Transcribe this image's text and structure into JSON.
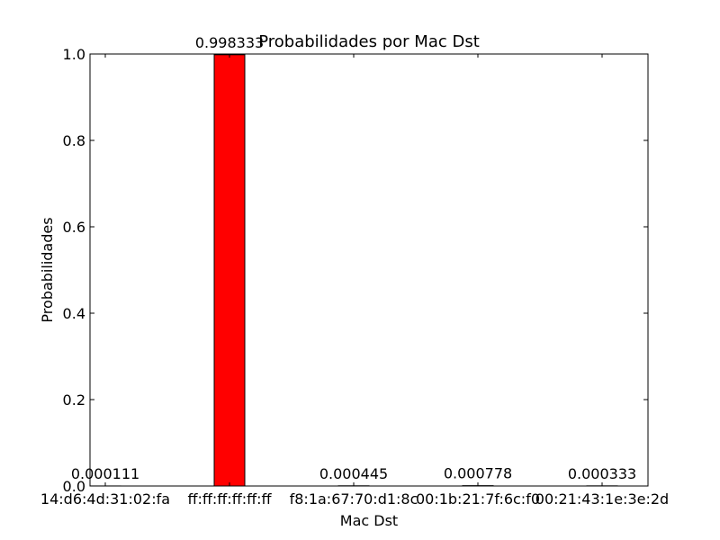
{
  "chart_data": {
    "type": "bar",
    "title": "Probabilidades por Mac Dst",
    "xlabel": "Mac Dst",
    "ylabel": "Probabilidades",
    "ylim": [
      0,
      1.0
    ],
    "yticks": [
      "0.0",
      "0.2",
      "0.4",
      "0.6",
      "0.8",
      "1.0"
    ],
    "categories": [
      "14:d6:4d:31:02:fa",
      "ff:ff:ff:ff:ff:ff",
      "f8:1a:67:70:d1:8c",
      "00:1b:21:7f:6c:f0",
      "00:21:43:1e:3e:2d"
    ],
    "values": [
      0.000111,
      0.998333,
      0.000445,
      0.000778,
      0.000333
    ],
    "value_labels": [
      "0.000111",
      "0.998333",
      "0.000445",
      "0.000778",
      "0.000333"
    ],
    "bar_color": "#ff0000",
    "grid": false
  }
}
